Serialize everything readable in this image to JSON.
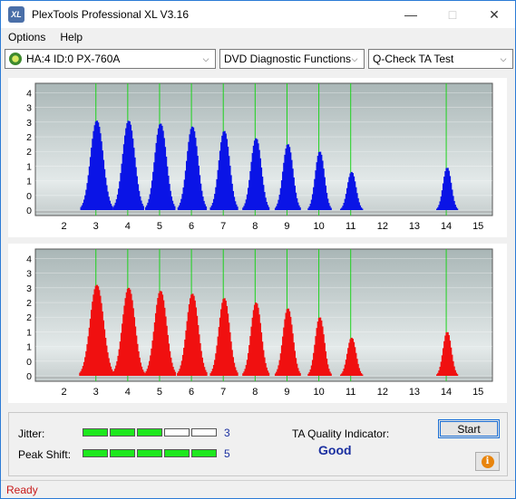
{
  "window": {
    "title": "PlexTools Professional XL V3.16",
    "icon_label": "XL",
    "minimize_icon": "minimize-icon",
    "maximize_icon": "maximize-icon",
    "close_icon": "close-icon"
  },
  "menu": {
    "options": "Options",
    "help": "Help"
  },
  "toolbar": {
    "drive": "HA:4 ID:0  PX-760A",
    "function": "DVD Diagnostic Functions",
    "test": "Q-Check TA Test"
  },
  "colors": {
    "top_bars": "#0a14e6",
    "bottom_bars": "#f01010",
    "markers": "#1ed21e",
    "plot_bg_top": "#a9b6b6",
    "plot_bg_mid": "#e4eaea"
  },
  "chart_data": [
    {
      "type": "bar",
      "name": "top-distribution",
      "y_ticks": [
        "0",
        "0.5",
        "1",
        "1.5",
        "2",
        "2.5",
        "3",
        "3.5",
        "4"
      ],
      "x_ticks": [
        "2",
        "3",
        "4",
        "5",
        "6",
        "7",
        "8",
        "9",
        "10",
        "11",
        "12",
        "13",
        "14",
        "15"
      ],
      "xlim": [
        2,
        15
      ],
      "ylim": [
        0,
        4.2
      ],
      "marker_positions": [
        3,
        4,
        5,
        6,
        7,
        8,
        9,
        10,
        11,
        14
      ],
      "peaks": [
        {
          "center": 3.0,
          "height": 3.05,
          "width": 0.28
        },
        {
          "center": 4.0,
          "height": 3.05,
          "width": 0.27
        },
        {
          "center": 5.0,
          "height": 2.95,
          "width": 0.26
        },
        {
          "center": 6.0,
          "height": 2.85,
          "width": 0.25
        },
        {
          "center": 7.0,
          "height": 2.7,
          "width": 0.24
        },
        {
          "center": 8.0,
          "height": 2.45,
          "width": 0.23
        },
        {
          "center": 9.0,
          "height": 2.25,
          "width": 0.22
        },
        {
          "center": 10.0,
          "height": 2.0,
          "width": 0.2
        },
        {
          "center": 11.0,
          "height": 1.3,
          "width": 0.19
        },
        {
          "center": 14.0,
          "height": 1.45,
          "width": 0.18
        }
      ]
    },
    {
      "type": "bar",
      "name": "bottom-distribution",
      "y_ticks": [
        "0",
        "0.5",
        "1",
        "1.5",
        "2",
        "2.5",
        "3",
        "3.5",
        "4"
      ],
      "x_ticks": [
        "2",
        "3",
        "4",
        "5",
        "6",
        "7",
        "8",
        "9",
        "10",
        "11",
        "12",
        "13",
        "14",
        "15"
      ],
      "xlim": [
        2,
        15
      ],
      "ylim": [
        0,
        4.2
      ],
      "marker_positions": [
        3,
        4,
        5,
        6,
        7,
        8,
        9,
        10,
        11,
        14
      ],
      "peaks": [
        {
          "center": 3.0,
          "height": 3.1,
          "width": 0.3
        },
        {
          "center": 4.0,
          "height": 3.0,
          "width": 0.28
        },
        {
          "center": 5.0,
          "height": 2.9,
          "width": 0.27
        },
        {
          "center": 6.0,
          "height": 2.8,
          "width": 0.26
        },
        {
          "center": 7.0,
          "height": 2.65,
          "width": 0.24
        },
        {
          "center": 8.0,
          "height": 2.5,
          "width": 0.23
        },
        {
          "center": 9.0,
          "height": 2.3,
          "width": 0.22
        },
        {
          "center": 10.0,
          "height": 2.0,
          "width": 0.2
        },
        {
          "center": 11.0,
          "height": 1.3,
          "width": 0.19
        },
        {
          "center": 14.0,
          "height": 1.5,
          "width": 0.18
        }
      ]
    }
  ],
  "metrics": {
    "jitter_label": "Jitter:",
    "jitter_value": "3",
    "jitter_level": 3,
    "peak_shift_label": "Peak Shift:",
    "peak_shift_value": "5",
    "peak_shift_level": 5,
    "level_max": 5,
    "ta_label": "TA Quality Indicator:",
    "ta_value": "Good"
  },
  "buttons": {
    "start": "Start",
    "info": "i"
  },
  "status": {
    "text": "Ready"
  }
}
